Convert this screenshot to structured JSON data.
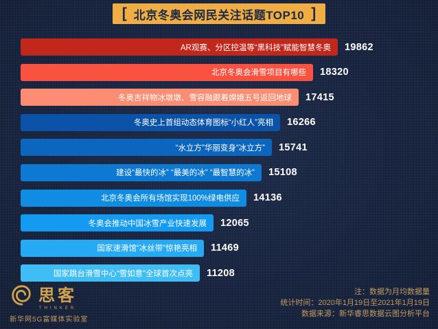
{
  "title": {
    "bracket_left": "[",
    "text": "北京冬奥会网民关注话题TOP10",
    "bracket_right": "]"
  },
  "chart_data": {
    "type": "bar",
    "orientation": "horizontal",
    "title": "北京冬奥会网民关注话题TOP10",
    "categories": [
      "AR观赛、分区控温等“黑科技”赋能智慧冬奥",
      "北京冬奥会滑雪项目有哪些",
      "冬奥吉祥物冰墩墩、雪容融跟着嫦娥五号返回地球",
      "冬奥史上首组动态体育图标“小红人”亮相",
      "“水立方”华丽变身“冰立方”",
      "建设“最快的冰” “最美的冰” “最智慧的冰”",
      "北京冬奥会所有场馆实现100%绿电供应",
      "冬奥会推动中国冰雪产业快速发展",
      "国家速滑馆“冰丝带”惊艳亮相",
      "国家跳台滑雪中心“雪如意”全球首次点亮"
    ],
    "values": [
      19862,
      18320,
      17415,
      16266,
      15741,
      15108,
      14136,
      12065,
      11469,
      11208
    ],
    "colors": [
      "#c1271b",
      "#fa5240",
      "#fb8e72",
      "#0a53a9",
      "#0c66be",
      "#0e79d2",
      "#108ce3",
      "#149bf1",
      "#27aaf4",
      "#3fbdf5"
    ],
    "xlim": [
      0,
      19862
    ],
    "value_labels": true,
    "legend": false,
    "grid": false
  },
  "footer": {
    "notes": [
      "注：数据为月均数据量",
      "统计时间：2020年1月19日至2021年1月19日",
      "数据来源：新华睿思数据云图分析平台"
    ],
    "logo": {
      "name": "思客",
      "subtitle": "THINKER",
      "org": "新华网5G富媒体实验室"
    }
  },
  "theme": {
    "background": "#18243f",
    "title_bg": "#f0ad43",
    "title_color": "#1b2a46",
    "note_color": "#c49a5f",
    "value_color": "#ffffff",
    "logo_gold": "#d2a24c"
  }
}
